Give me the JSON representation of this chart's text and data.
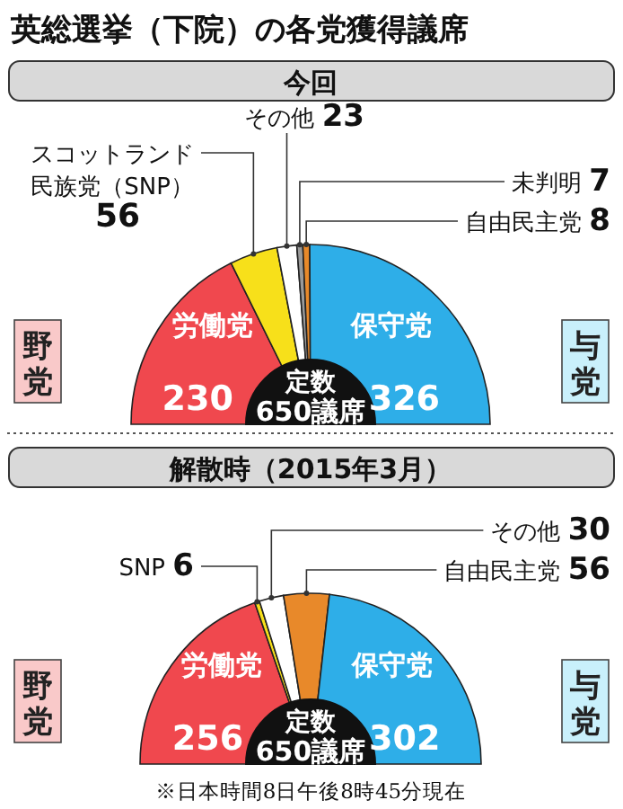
{
  "chart_data": [
    {
      "type": "pie",
      "title": "英総選挙（下院）の各党獲得議席",
      "subtitle": "今回",
      "categories": [
        "労働党",
        "スコットランド民族党（SNP）",
        "その他",
        "未判明",
        "自由民主党",
        "保守党"
      ],
      "values": [
        230,
        56,
        23,
        7,
        8,
        326
      ],
      "colors": [
        "#f0484e",
        "#f7e01a",
        "#ffffff",
        "#9a9a9a",
        "#e8892a",
        "#2eaee8"
      ],
      "data_labels": true,
      "annotations": [
        "定数",
        "650議席",
        "野党",
        "与党"
      ]
    },
    {
      "type": "pie",
      "subtitle": "解散時（2015年3月）",
      "categories": [
        "労働党",
        "SNP",
        "その他",
        "自由民主党",
        "保守党"
      ],
      "values": [
        256,
        6,
        30,
        56,
        302
      ],
      "colors": [
        "#f0484e",
        "#f7e01a",
        "#ffffff",
        "#e8892a",
        "#2eaee8"
      ],
      "data_labels": true,
      "annotations": [
        "定数",
        "650議席",
        "野党",
        "与党",
        "※日本時間8日午後8時45分現在"
      ]
    }
  ]
}
